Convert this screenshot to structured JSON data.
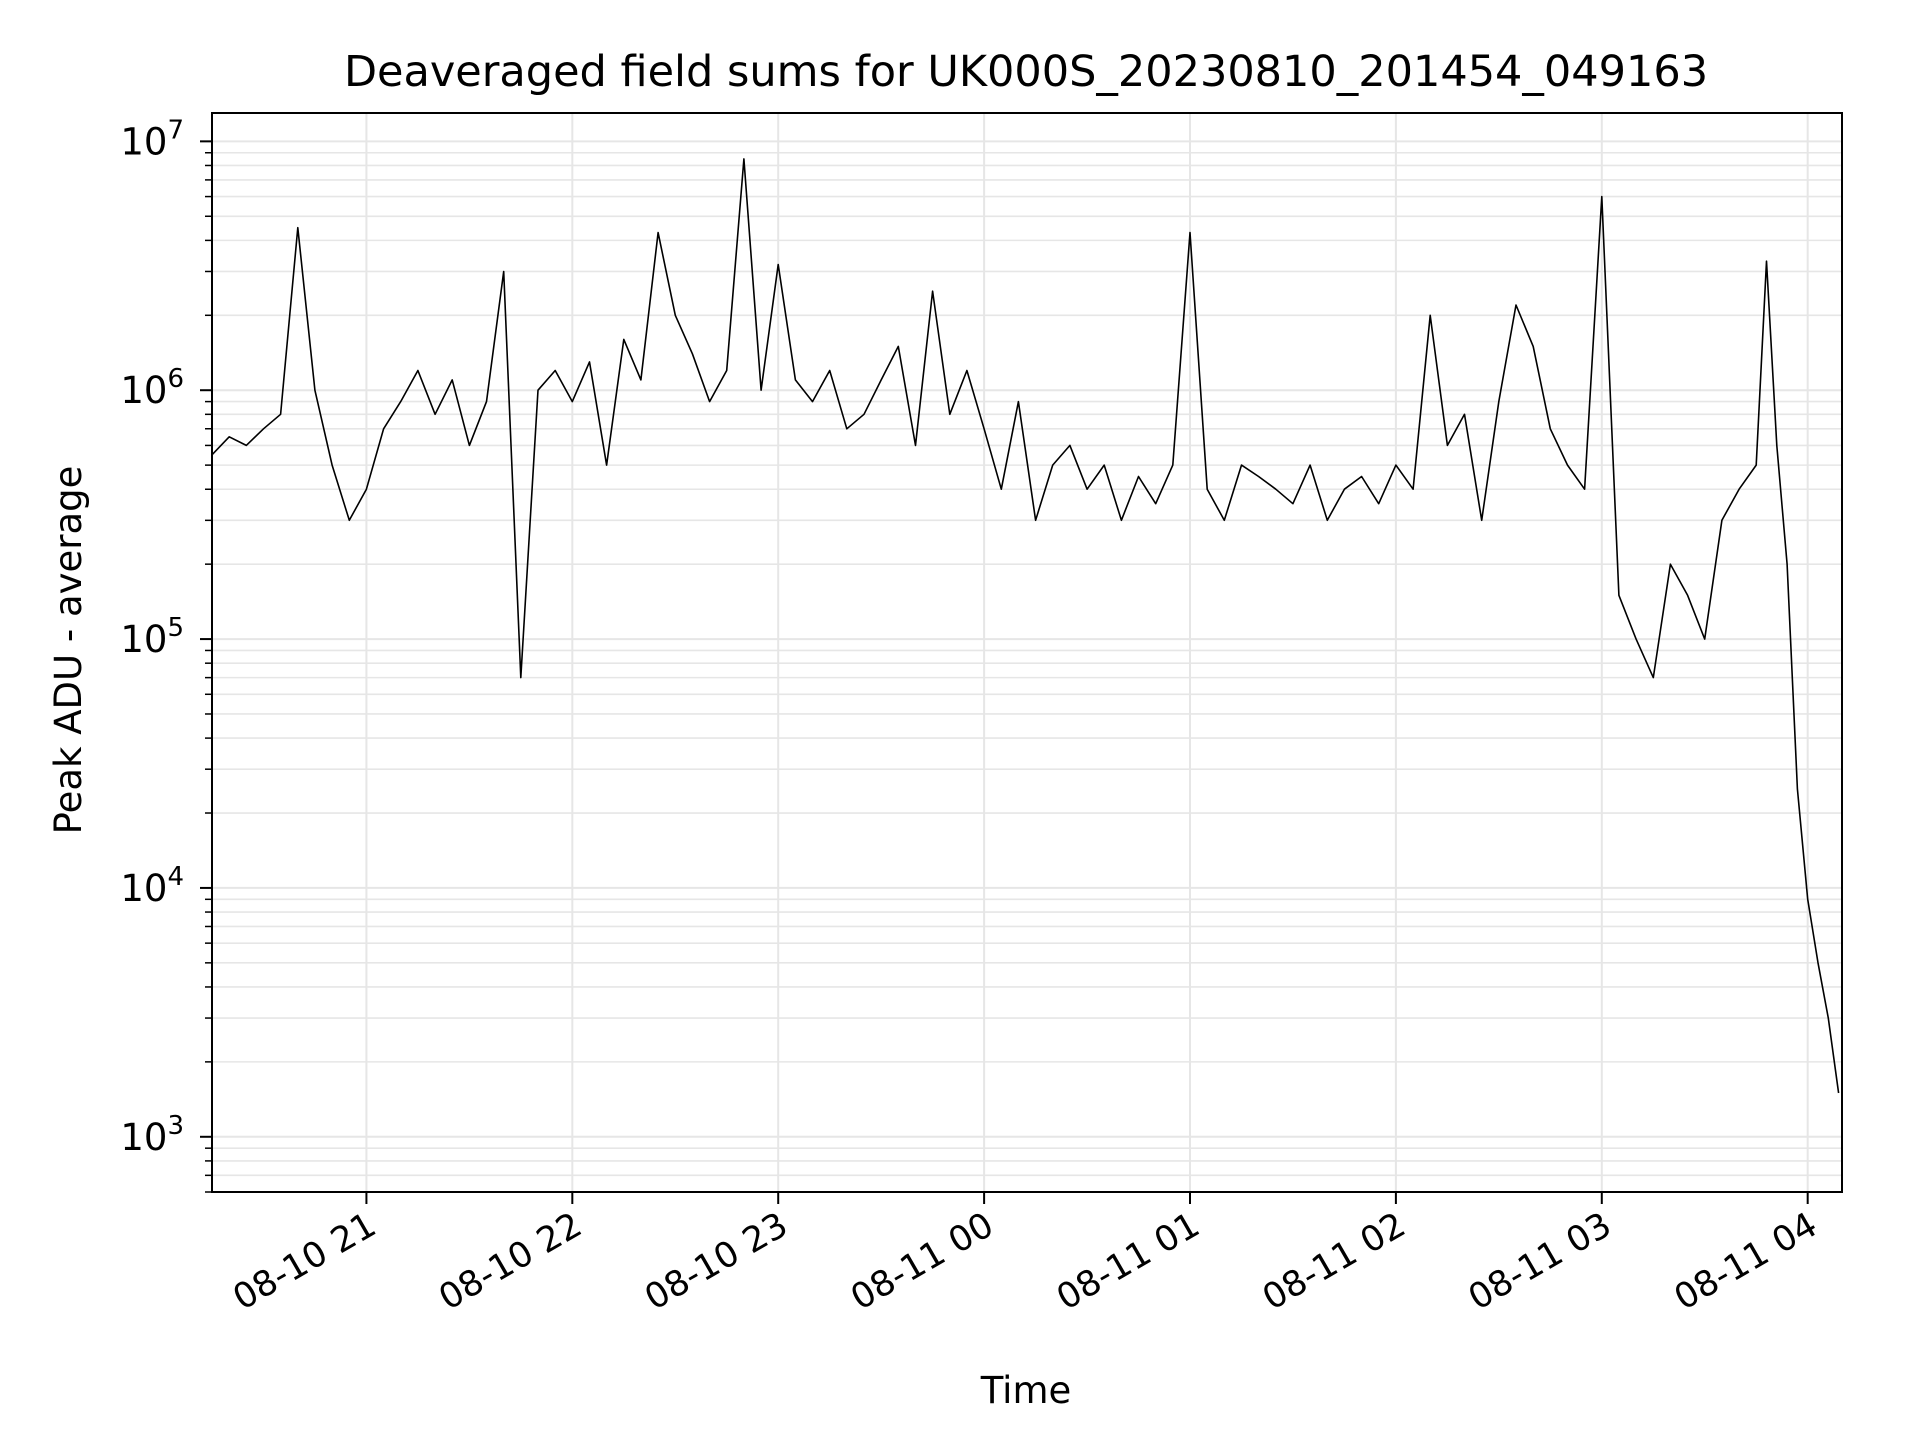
{
  "chart_data": {
    "type": "line",
    "title": "Deaveraged field sums for UK000S_20230810_201454_049163",
    "xlabel": "Time",
    "ylabel": "Peak ADU - average",
    "yscale": "log",
    "grid": true,
    "colors": {
      "line": "#000000",
      "grid": "#e6e6e6",
      "axes": "#000000"
    },
    "xlim": [
      "2023-08-10 20:15",
      "2023-08-11 04:10"
    ],
    "ylim": [
      600,
      13000000
    ],
    "x_ticks": [
      {
        "t": "2023-08-10 21:00",
        "label": "08-10 21"
      },
      {
        "t": "2023-08-10 22:00",
        "label": "08-10 22"
      },
      {
        "t": "2023-08-10 23:00",
        "label": "08-10 23"
      },
      {
        "t": "2023-08-11 00:00",
        "label": "08-11 00"
      },
      {
        "t": "2023-08-11 01:00",
        "label": "08-11 01"
      },
      {
        "t": "2023-08-11 02:00",
        "label": "08-11 02"
      },
      {
        "t": "2023-08-11 03:00",
        "label": "08-11 03"
      },
      {
        "t": "2023-08-11 04:00",
        "label": "08-11 04"
      }
    ],
    "y_ticks": [
      {
        "value": 1000,
        "base": "10",
        "exp": "3"
      },
      {
        "value": 10000,
        "base": "10",
        "exp": "4"
      },
      {
        "value": 100000,
        "base": "10",
        "exp": "5"
      },
      {
        "value": 1000000,
        "base": "10",
        "exp": "6"
      },
      {
        "value": 10000000,
        "base": "10",
        "exp": "7"
      }
    ],
    "series": [
      {
        "x": [
          "2023-08-10 20:15",
          "2023-08-10 20:20",
          "2023-08-10 20:25",
          "2023-08-10 20:30",
          "2023-08-10 20:35",
          "2023-08-10 20:40",
          "2023-08-10 20:45",
          "2023-08-10 20:50",
          "2023-08-10 20:55",
          "2023-08-10 21:00",
          "2023-08-10 21:05",
          "2023-08-10 21:10",
          "2023-08-10 21:15",
          "2023-08-10 21:20",
          "2023-08-10 21:25",
          "2023-08-10 21:30",
          "2023-08-10 21:35",
          "2023-08-10 21:40",
          "2023-08-10 21:45",
          "2023-08-10 21:50",
          "2023-08-10 21:55",
          "2023-08-10 22:00",
          "2023-08-10 22:05",
          "2023-08-10 22:10",
          "2023-08-10 22:15",
          "2023-08-10 22:20",
          "2023-08-10 22:25",
          "2023-08-10 22:30",
          "2023-08-10 22:35",
          "2023-08-10 22:40",
          "2023-08-10 22:45",
          "2023-08-10 22:50",
          "2023-08-10 22:55",
          "2023-08-10 23:00",
          "2023-08-10 23:05",
          "2023-08-10 23:10",
          "2023-08-10 23:15",
          "2023-08-10 23:20",
          "2023-08-10 23:25",
          "2023-08-10 23:30",
          "2023-08-10 23:35",
          "2023-08-10 23:40",
          "2023-08-10 23:45",
          "2023-08-10 23:50",
          "2023-08-10 23:55",
          "2023-08-11 00:00",
          "2023-08-11 00:05",
          "2023-08-11 00:10",
          "2023-08-11 00:15",
          "2023-08-11 00:20",
          "2023-08-11 00:25",
          "2023-08-11 00:30",
          "2023-08-11 00:35",
          "2023-08-11 00:40",
          "2023-08-11 00:45",
          "2023-08-11 00:50",
          "2023-08-11 00:55",
          "2023-08-11 01:00",
          "2023-08-11 01:05",
          "2023-08-11 01:10",
          "2023-08-11 01:15",
          "2023-08-11 01:20",
          "2023-08-11 01:25",
          "2023-08-11 01:30",
          "2023-08-11 01:35",
          "2023-08-11 01:40",
          "2023-08-11 01:45",
          "2023-08-11 01:50",
          "2023-08-11 01:55",
          "2023-08-11 02:00",
          "2023-08-11 02:05",
          "2023-08-11 02:10",
          "2023-08-11 02:15",
          "2023-08-11 02:20",
          "2023-08-11 02:25",
          "2023-08-11 02:30",
          "2023-08-11 02:35",
          "2023-08-11 02:40",
          "2023-08-11 02:45",
          "2023-08-11 02:50",
          "2023-08-11 02:55",
          "2023-08-11 03:00",
          "2023-08-11 03:05",
          "2023-08-11 03:10",
          "2023-08-11 03:15",
          "2023-08-11 03:20",
          "2023-08-11 03:25",
          "2023-08-11 03:30",
          "2023-08-11 03:35",
          "2023-08-11 03:40",
          "2023-08-11 03:45",
          "2023-08-11 03:48",
          "2023-08-11 03:51",
          "2023-08-11 03:54",
          "2023-08-11 03:57",
          "2023-08-11 04:00",
          "2023-08-11 04:03",
          "2023-08-11 04:06",
          "2023-08-11 04:09"
        ],
        "y": [
          550000,
          650000,
          600000,
          700000,
          800000,
          4500000,
          1000000,
          500000,
          300000,
          400000,
          700000,
          900000,
          1200000,
          800000,
          1100000,
          600000,
          900000,
          3000000,
          70000,
          1000000,
          1200000,
          900000,
          1300000,
          500000,
          1600000,
          1100000,
          4300000,
          2000000,
          1400000,
          900000,
          1200000,
          8500000,
          1000000,
          3200000,
          1100000,
          900000,
          1200000,
          700000,
          800000,
          1100000,
          1500000,
          600000,
          2500000,
          800000,
          1200000,
          700000,
          400000,
          900000,
          300000,
          500000,
          600000,
          400000,
          500000,
          300000,
          450000,
          350000,
          500000,
          4300000,
          400000,
          300000,
          500000,
          450000,
          400000,
          350000,
          500000,
          300000,
          400000,
          450000,
          350000,
          500000,
          400000,
          2000000,
          600000,
          800000,
          300000,
          900000,
          2200000,
          1500000,
          700000,
          500000,
          400000,
          6000000,
          150000,
          100000,
          70000,
          200000,
          150000,
          100000,
          300000,
          400000,
          500000,
          3300000,
          600000,
          200000,
          25000,
          9000,
          5000,
          3000,
          1500
        ]
      }
    ]
  }
}
